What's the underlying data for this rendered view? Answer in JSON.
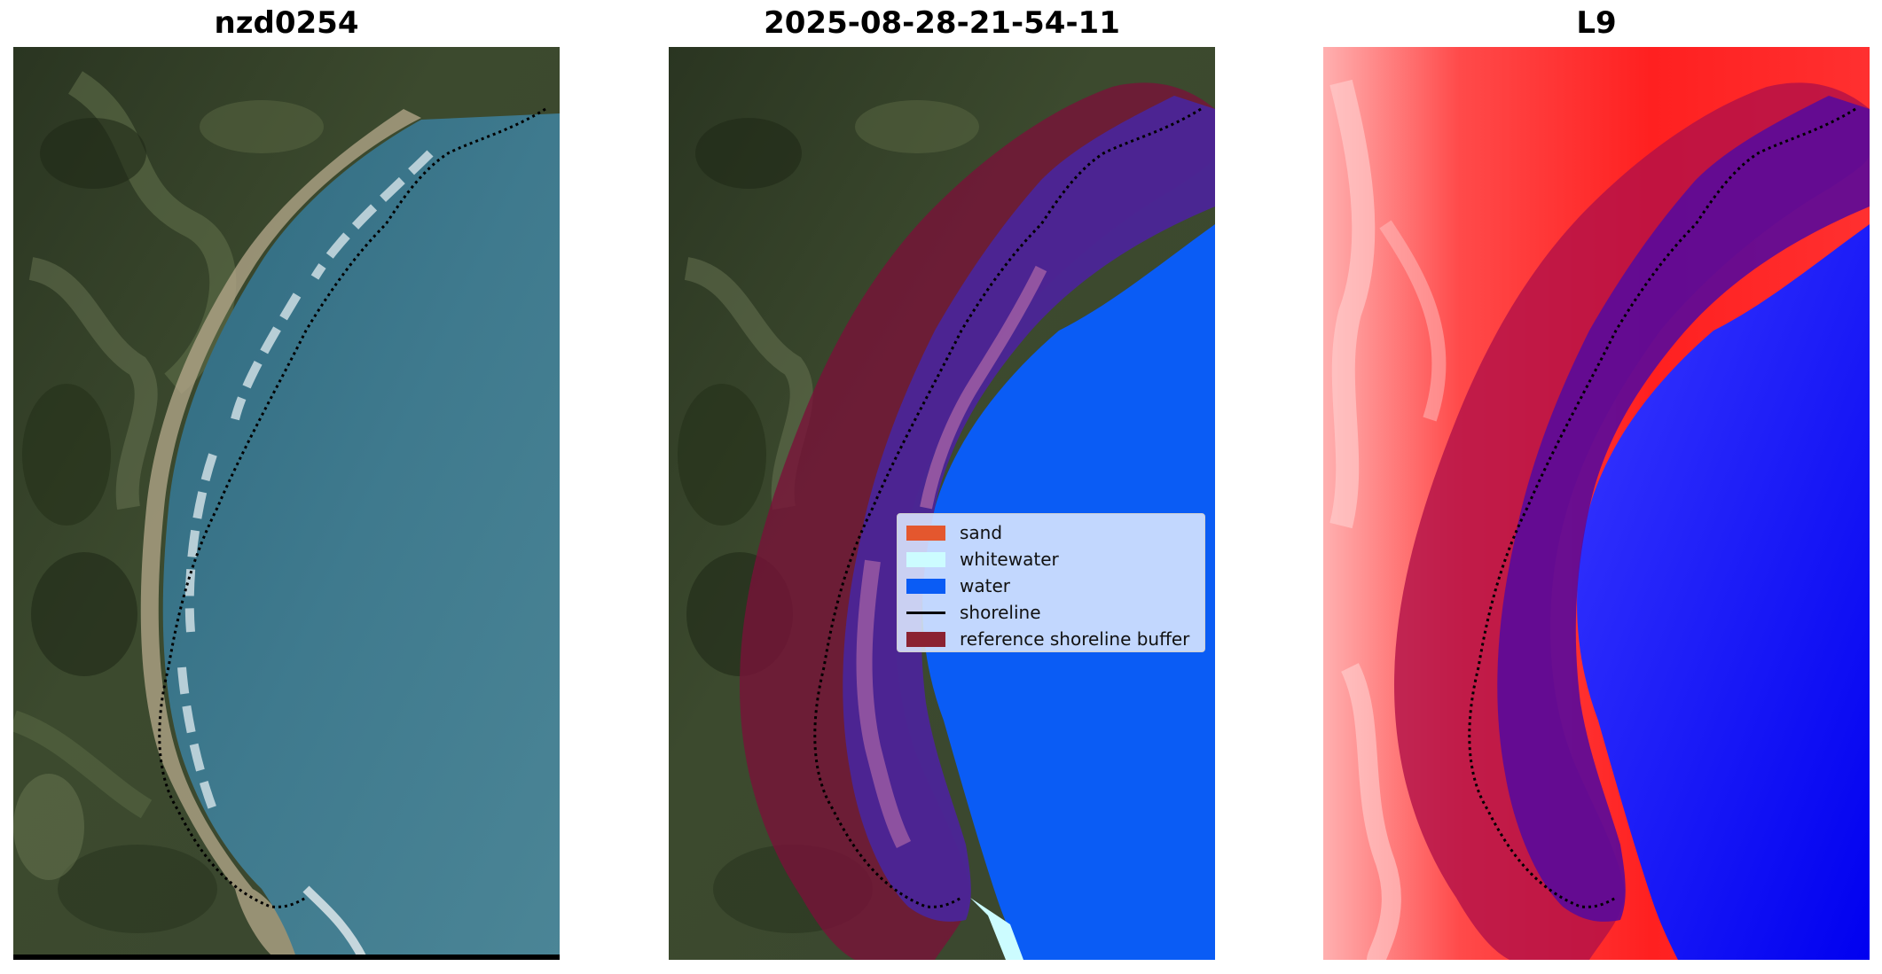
{
  "panels": {
    "left": {
      "title": "nzd0254"
    },
    "middle": {
      "title": "2025-08-28-21-54-11"
    },
    "right": {
      "title": "L9"
    }
  },
  "legend": {
    "items": [
      {
        "label": "sand",
        "color": "#e4572e",
        "kind": "patch"
      },
      {
        "label": "whitewater",
        "color": "#ccfcff",
        "kind": "patch"
      },
      {
        "label": "water",
        "color": "#0a5cf5",
        "kind": "patch"
      },
      {
        "label": "shoreline",
        "color": "#000000",
        "kind": "line"
      },
      {
        "label": "reference shoreline buffer",
        "color": "#8b2232",
        "kind": "patch"
      }
    ]
  },
  "colors": {
    "land_dark": "#2f3b26",
    "land_light": "#5c6a48",
    "sea": "#3d7389",
    "water_class": "#0a5cf5",
    "buffer": "#7a1138",
    "index_land": "#ff2020",
    "index_water": "#0000ff"
  }
}
